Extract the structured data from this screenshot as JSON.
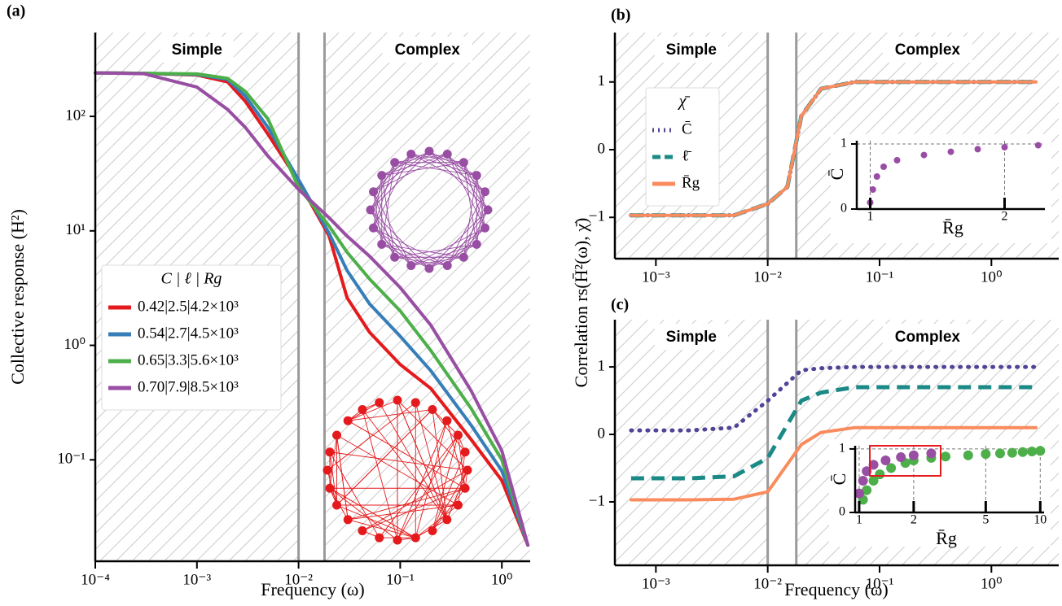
{
  "chart_data": [
    {
      "type": "line",
      "panel": "(a)",
      "xlabel": "Frequency (ω)",
      "ylabel": "Collective response (H²)",
      "xlog": true,
      "ylog": true,
      "xlim": [
        0.0001,
        1.9
      ],
      "ylim": [
        0.013,
        540
      ],
      "xticks": [
        {
          "value": 0.0001,
          "label": "10⁻⁴"
        },
        {
          "value": 0.001,
          "label": "10⁻³"
        },
        {
          "value": 0.01,
          "label": "10⁻²"
        },
        {
          "value": 0.1,
          "label": "10⁻¹"
        },
        {
          "value": 1,
          "label": "10⁰"
        }
      ],
      "yticks": [
        {
          "value": 0.1,
          "label": "10⁻¹"
        },
        {
          "value": 1,
          "label": "10⁰"
        },
        {
          "value": 10,
          "label": "10¹"
        },
        {
          "value": 100,
          "label": "10²"
        }
      ],
      "region_bounds": [
        0.01,
        0.018
      ],
      "region_labels": [
        "Simple",
        "Complex"
      ],
      "legend": "center left",
      "legend_title": "C  |  ℓ  |  Rg",
      "x": [
        0.0001,
        0.0003,
        0.001,
        0.002,
        0.003,
        0.005,
        0.01,
        0.02,
        0.03,
        0.05,
        0.1,
        0.2,
        0.5,
        1,
        1.8
      ],
      "series": [
        {
          "name": "0.42|2.5|4.2×10³",
          "color": "#e41a1c",
          "style": "solid",
          "values": [
            240,
            238,
            230,
            200,
            135,
            70,
            27,
            9,
            2.6,
            1.3,
            0.68,
            0.42,
            0.15,
            0.066,
            0.018
          ]
        },
        {
          "name": "0.54|2.7|4.5×10³",
          "color": "#377eb8",
          "style": "solid",
          "values": [
            240,
            238,
            232,
            210,
            150,
            80,
            28,
            9.5,
            4.5,
            2.3,
            1.2,
            0.6,
            0.2,
            0.08,
            0.018
          ]
        },
        {
          "name": "0.65|3.3|5.6×10³",
          "color": "#4daf4a",
          "style": "solid",
          "values": [
            240,
            238,
            235,
            215,
            165,
            95,
            24,
            11,
            6.5,
            3.8,
            2.0,
            0.9,
            0.28,
            0.1,
            0.018
          ]
        },
        {
          "name": "0.70|7.9|8.5×10³",
          "color": "#984ea3",
          "style": "solid",
          "values": [
            240,
            236,
            180,
            115,
            80,
            45,
            23,
            13,
            9,
            6,
            3.2,
            1.5,
            0.4,
            0.12,
            0.018
          ]
        }
      ]
    },
    {
      "type": "line",
      "panel": "(b)",
      "ylabel": "Correlation rs(H̄²(ω), χ̄)",
      "xlog": true,
      "ylog": false,
      "xlim": [
        0.00043,
        4
      ],
      "ylim": [
        -1.61,
        1.73
      ],
      "xticks": [
        {
          "value": 0.001,
          "label": "10⁻³"
        },
        {
          "value": 0.01,
          "label": "10⁻²"
        },
        {
          "value": 0.1,
          "label": "10⁻¹"
        },
        {
          "value": 1,
          "label": "10⁰"
        }
      ],
      "yticks": [
        {
          "value": -1,
          "label": "−1"
        },
        0,
        1
      ],
      "region_bounds": [
        0.01,
        0.018
      ],
      "region_labels": [
        "Simple",
        "Complex"
      ],
      "legend": "upper left",
      "legend_title": "χ̄",
      "x": [
        0.0006,
        0.001,
        0.002,
        0.005,
        0.01,
        0.015,
        0.02,
        0.03,
        0.06,
        0.1,
        1,
        2.5
      ],
      "series": [
        {
          "name": "C̄",
          "color": "#4f4496",
          "style": "dotted",
          "values": [
            -0.97,
            -0.97,
            -0.97,
            -0.97,
            -0.8,
            -0.55,
            0.5,
            0.9,
            1,
            1,
            1,
            1
          ]
        },
        {
          "name": "ℓ̄",
          "color": "#1b8a86",
          "style": "dashed",
          "values": [
            -0.97,
            -0.97,
            -0.97,
            -0.97,
            -0.8,
            -0.55,
            0.5,
            0.9,
            1,
            1,
            1,
            1
          ]
        },
        {
          "name": "R̄g",
          "color": "#f98c5e",
          "style": "solid",
          "values": [
            -0.97,
            -0.97,
            -0.97,
            -0.97,
            -0.8,
            -0.55,
            0.5,
            0.9,
            1,
            1,
            1,
            1
          ]
        }
      ]
    },
    {
      "type": "scatter",
      "xlabel": "R̄g",
      "ylabel": "C̄",
      "xlog": false,
      "ylog": false,
      "xlim": [
        0.9,
        2.3
      ],
      "ylim": [
        0,
        1.05
      ],
      "xticks": [
        1,
        2
      ],
      "yticks": [
        0,
        1
      ],
      "grid": true,
      "series": [
        {
          "color": "#984ea3",
          "x": [
            1,
            1.02,
            1.05,
            1.1,
            1.2,
            1.4,
            1.6,
            1.8,
            2.0,
            2.25
          ],
          "values": [
            0.1,
            0.3,
            0.5,
            0.65,
            0.75,
            0.83,
            0.88,
            0.92,
            0.95,
            0.98
          ]
        }
      ]
    },
    {
      "type": "line",
      "panel": "(c)",
      "xlabel": "Frequency (ω)",
      "xlog": true,
      "ylog": false,
      "xlim": [
        0.00043,
        4
      ],
      "ylim": [
        -1.94,
        1.7
      ],
      "xticks": [
        {
          "value": 0.001,
          "label": "10⁻³"
        },
        {
          "value": 0.01,
          "label": "10⁻²"
        },
        {
          "value": 0.1,
          "label": "10⁻¹"
        },
        {
          "value": 1,
          "label": "10⁰"
        }
      ],
      "yticks": [
        {
          "value": -1,
          "label": "−1"
        },
        0,
        1
      ],
      "region_bounds": [
        0.01,
        0.018
      ],
      "region_labels": [
        "Simple",
        "Complex"
      ],
      "x": [
        0.0006,
        0.001,
        0.002,
        0.005,
        0.01,
        0.02,
        0.03,
        0.06,
        0.1,
        1,
        2.5
      ],
      "series": [
        {
          "color": "#4f4496",
          "style": "dotted",
          "values": [
            0.06,
            0.06,
            0.06,
            0.1,
            0.5,
            0.95,
            0.98,
            1,
            1,
            1,
            1
          ]
        },
        {
          "color": "#1b8a86",
          "style": "dashed",
          "values": [
            -0.65,
            -0.65,
            -0.65,
            -0.62,
            -0.35,
            0.5,
            0.62,
            0.7,
            0.7,
            0.7,
            0.7
          ]
        },
        {
          "color": "#f98c5e",
          "style": "solid",
          "values": [
            -0.97,
            -0.97,
            -0.97,
            -0.96,
            -0.85,
            -0.15,
            0.03,
            0.1,
            0.1,
            0.1,
            0.1
          ]
        }
      ]
    },
    {
      "type": "scatter",
      "xlabel": "R̄g",
      "ylabel": "C̄",
      "xlog": true,
      "ylog": false,
      "xlim": [
        0.95,
        10.5
      ],
      "ylim": [
        0,
        1.05
      ],
      "xticks": [
        1,
        2,
        5,
        10
      ],
      "yticks": [
        0,
        1
      ],
      "grid": true,
      "series": [
        {
          "color": "#4daf4a",
          "x": [
            1.05,
            1.1,
            1.2,
            1.3,
            1.5,
            1.8,
            2,
            2.5,
            3,
            4,
            5,
            6,
            7,
            8,
            9,
            10
          ],
          "values": [
            0.2,
            0.35,
            0.5,
            0.6,
            0.7,
            0.78,
            0.82,
            0.86,
            0.88,
            0.9,
            0.92,
            0.93,
            0.94,
            0.95,
            0.96,
            0.97
          ]
        },
        {
          "color": "#984ea3",
          "x": [
            1.0,
            1.05,
            1.1,
            1.2,
            1.4,
            1.7,
            2,
            2.5
          ],
          "values": [
            0.3,
            0.5,
            0.65,
            0.75,
            0.82,
            0.87,
            0.9,
            0.93
          ]
        }
      ]
    }
  ]
}
